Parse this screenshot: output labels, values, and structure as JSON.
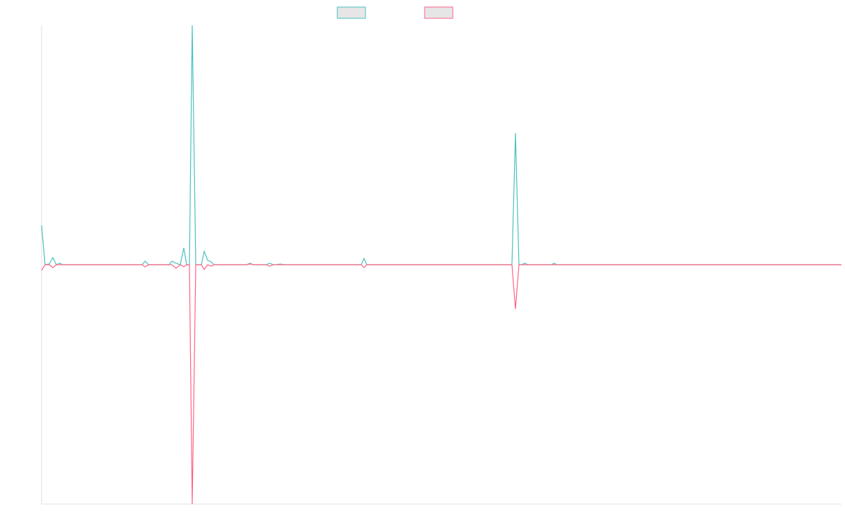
{
  "chart_data": {
    "type": "line",
    "xlim": [
      0,
      1136
    ],
    "ylim": [
      -100,
      100
    ],
    "legend": "top",
    "x": [
      0,
      5,
      11,
      16,
      21,
      26,
      30,
      143,
      147,
      152,
      181,
      185,
      191,
      197,
      202,
      206,
      210,
      214,
      219,
      227,
      231,
      236,
      241,
      245,
      291,
      296,
      301,
      319,
      324,
      329,
      334,
      339,
      344,
      454,
      458,
      462,
      668,
      673,
      678,
      682,
      686,
      691,
      724,
      728,
      732,
      1136
    ],
    "series": [
      {
        "color": "#4bc0c0",
        "values": [
          16.5,
          0,
          0.3,
          3,
          0,
          0.6,
          0,
          0,
          1.5,
          0,
          0,
          1.5,
          0.6,
          0,
          7,
          0,
          0,
          100,
          0,
          0,
          5.6,
          1.8,
          1.2,
          0,
          0,
          0.6,
          0,
          0,
          0.6,
          0,
          0,
          0.3,
          0,
          0,
          2.6,
          0,
          0,
          55,
          0,
          0,
          0.6,
          0,
          0,
          0.6,
          0,
          0
        ]
      },
      {
        "color": "#ff6384",
        "values": [
          -2.4,
          0,
          0,
          -1.2,
          0,
          0,
          0,
          0,
          -0.9,
          0,
          0,
          0,
          -1.5,
          0,
          -0.9,
          0,
          0,
          -100,
          0,
          0,
          -2,
          0,
          -0.6,
          0,
          0,
          0.3,
          0,
          0,
          -0.6,
          0,
          0,
          0,
          0,
          0,
          -1.2,
          0,
          0,
          -18.5,
          0,
          0,
          0,
          0,
          0,
          0,
          0,
          0
        ]
      }
    ]
  }
}
